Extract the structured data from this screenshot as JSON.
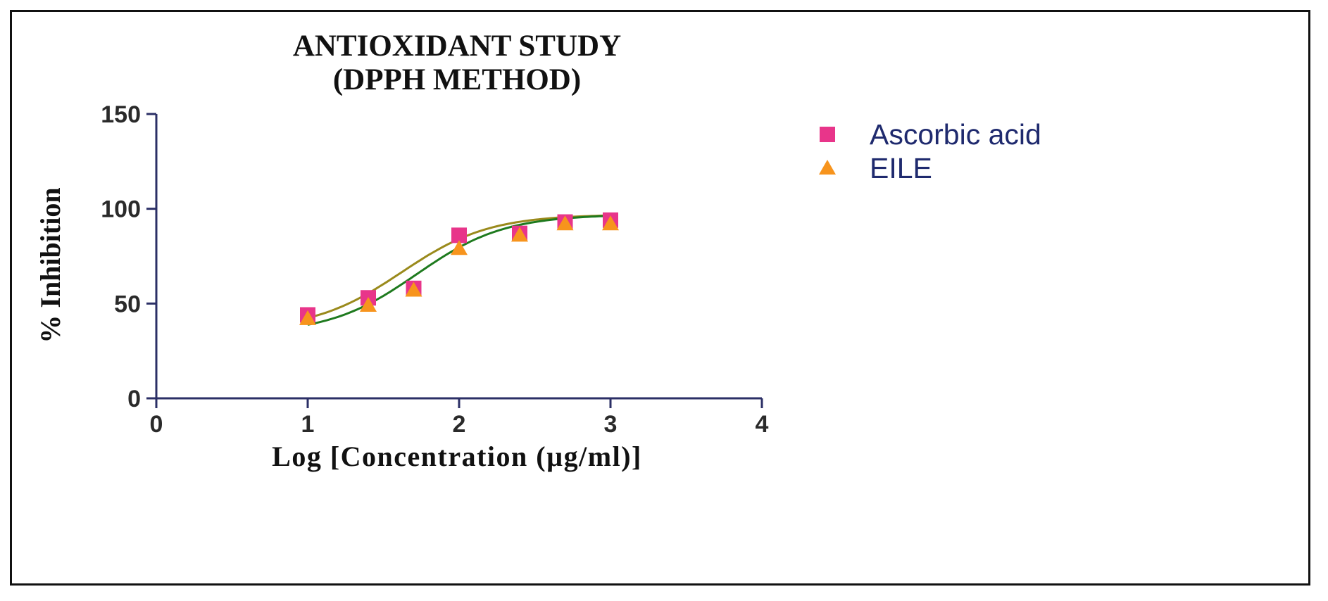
{
  "chart_data": {
    "type": "scatter",
    "title": [
      "ANTIOXIDANT STUDY",
      "(DPPH METHOD)"
    ],
    "xlabel": "Log [Concentration (µg/ml)]",
    "ylabel": "% Inhibition",
    "xlim": [
      0,
      4
    ],
    "ylim": [
      0,
      150
    ],
    "x_ticks": [
      "0",
      "1",
      "2",
      "3",
      "4"
    ],
    "y_ticks": [
      "0",
      "50",
      "100",
      "150"
    ],
    "grid": false,
    "legend_position": "top-right",
    "series": [
      {
        "name": "Ascorbic acid",
        "marker": "square",
        "color": "#e8358a",
        "fit_color": "#9a8a1c",
        "x": [
          1.0,
          1.4,
          1.7,
          2.0,
          2.4,
          2.7,
          3.0
        ],
        "y": [
          44,
          53,
          58,
          86,
          87,
          93,
          94
        ],
        "fit": {
          "bottom": 36,
          "top": 97,
          "logEC50": 1.62,
          "hill": 1.5
        }
      },
      {
        "name": "EILE",
        "marker": "triangle",
        "color": "#f7941d",
        "fit_color": "#1e7a1e",
        "x": [
          1.0,
          1.4,
          1.7,
          2.0,
          2.4,
          2.7,
          3.0
        ],
        "y": [
          42,
          49,
          57,
          79,
          86,
          92,
          92
        ],
        "fit": {
          "bottom": 34,
          "top": 97,
          "logEC50": 1.72,
          "hill": 1.5
        }
      }
    ],
    "colors": {
      "axis": "#2b2f66",
      "frame": "#111111"
    }
  }
}
